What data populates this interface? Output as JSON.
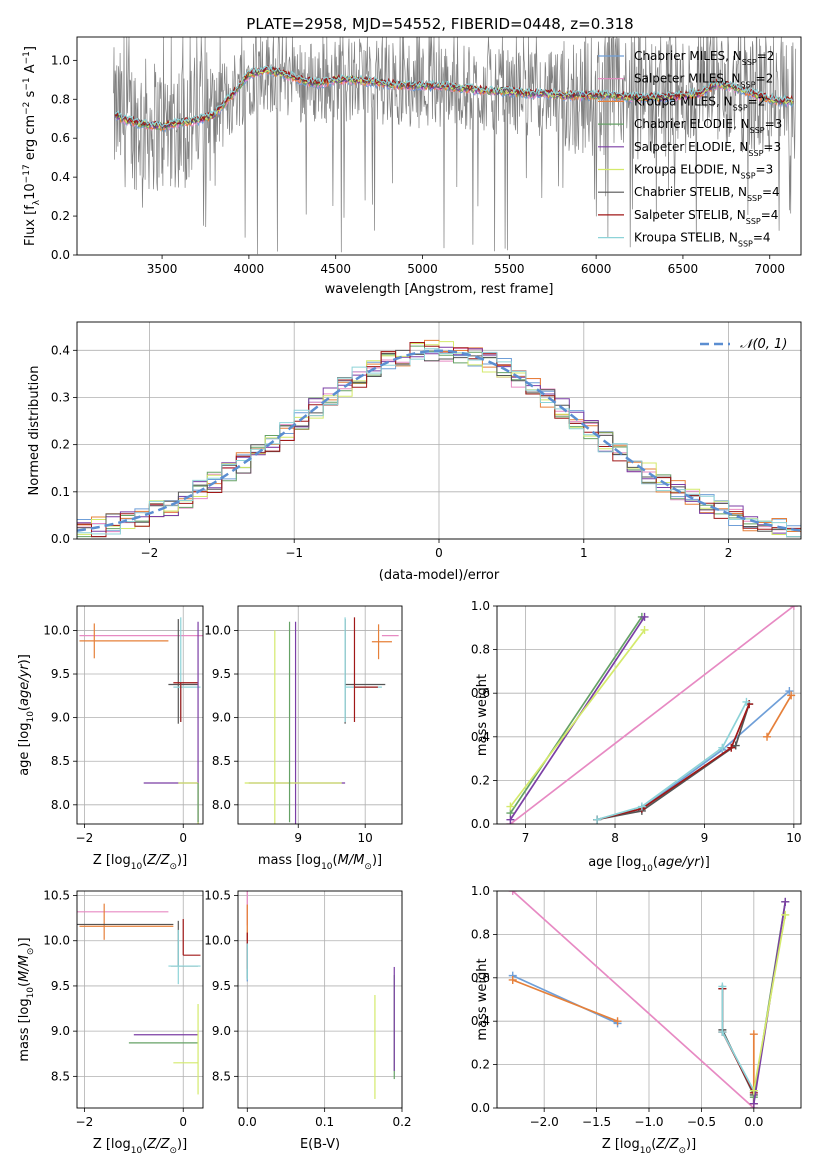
{
  "figure": {
    "title": "PLATE=2958, MJD=54552, FIBERID=0448, z=0.318"
  },
  "colors": {
    "Chabrier MILES": "#6f9fd8",
    "Salpeter MILES": "#e78ac3",
    "Kroupa MILES": "#e6803a",
    "Chabrier ELODIE": "#66a266",
    "Salpeter ELODIE": "#7b3fa5",
    "Kroupa ELODIE": "#d4ea6b",
    "Chabrier STELIB": "#555555",
    "Salpeter STELIB": "#a01818",
    "Kroupa STELIB": "#8dd3d8",
    "grid": "#b0b0b0",
    "data": "#808080"
  },
  "chart_data": [
    {
      "id": "spectrum",
      "type": "line",
      "xlabel": "wavelength [Angstrom, rest frame]",
      "ylabel": "Flux [f",
      "ylabel_parts": [
        "Flux [f",
        "λ",
        "10",
        "−17",
        " erg cm",
        "−2",
        " s",
        "−1",
        " A",
        "−1",
        "]"
      ],
      "xlim": [
        3010,
        7180
      ],
      "ylim": [
        0,
        1.12
      ],
      "xticks": [
        3500,
        4000,
        4500,
        5000,
        5500,
        6000,
        6500,
        7000
      ],
      "yticks": [
        0.0,
        0.2,
        0.4,
        0.6,
        0.8,
        1.0
      ],
      "grid": false,
      "legend_position": "upper right",
      "legend": [
        {
          "name": "Chabrier MILES",
          "n": "2"
        },
        {
          "name": "Salpeter MILES",
          "n": "2"
        },
        {
          "name": "Kroupa MILES",
          "n": "2"
        },
        {
          "name": "Chabrier ELODIE",
          "n": "3"
        },
        {
          "name": "Salpeter ELODIE",
          "n": "3"
        },
        {
          "name": "Kroupa ELODIE",
          "n": "3"
        },
        {
          "name": "Chabrier STELIB",
          "n": "4"
        },
        {
          "name": "Salpeter STELIB",
          "n": "4"
        },
        {
          "name": "Kroupa STELIB",
          "n": "4"
        }
      ],
      "model_x": [
        3200,
        3300,
        3400,
        3500,
        3600,
        3700,
        3800,
        3900,
        4000,
        4100,
        4200,
        4300,
        4400,
        4500,
        4600,
        4700,
        4800,
        4900,
        5000,
        5100,
        5200,
        5300,
        5400,
        5500,
        5600,
        5700,
        5800,
        5900,
        6000,
        6100,
        6200,
        6300,
        6400,
        6500,
        6600,
        6700,
        6800,
        6900,
        7000,
        7100
      ],
      "model_y": [
        0.73,
        0.69,
        0.67,
        0.66,
        0.68,
        0.69,
        0.72,
        0.82,
        0.93,
        0.95,
        0.93,
        0.9,
        0.88,
        0.9,
        0.9,
        0.89,
        0.88,
        0.87,
        0.87,
        0.87,
        0.86,
        0.85,
        0.84,
        0.84,
        0.83,
        0.83,
        0.82,
        0.82,
        0.82,
        0.82,
        0.81,
        0.81,
        0.81,
        0.82,
        0.83,
        0.88,
        0.86,
        0.83,
        0.8,
        0.79
      ]
    },
    {
      "id": "residuals",
      "type": "line",
      "xlabel": "(data-model)/error",
      "ylabel": "Normed distribution",
      "xlim": [
        -2.5,
        2.5
      ],
      "ylim": [
        0,
        0.46
      ],
      "xticks": [
        -2,
        -1,
        0,
        1,
        2
      ],
      "yticks": [
        0.0,
        0.1,
        0.2,
        0.3,
        0.4
      ],
      "grid": true,
      "legend": [
        {
          "name": "𝒩(0, 1)"
        }
      ],
      "legend_position": "upper right"
    },
    {
      "id": "age-vs-Z",
      "type": "scatter",
      "xlabel": "Z [log10(Z/Z⊙)]",
      "ylabel": "age  [log10(age/yr)]",
      "xlim": [
        -2.15,
        0.4
      ],
      "ylim": [
        7.78,
        10.28
      ],
      "xticks": [
        -2,
        0
      ],
      "yticks": [
        8.0,
        8.5,
        9.0,
        9.5,
        10.0
      ],
      "grid": true
    },
    {
      "id": "age-vs-mass",
      "type": "scatter",
      "xlabel": "mass [log10(M/M⊙)]",
      "xlim": [
        8.1,
        10.55
      ],
      "ylim": [
        7.78,
        10.28
      ],
      "xticks": [
        9,
        10
      ],
      "yticks": [
        8.0,
        8.5,
        9.0,
        9.5,
        10.0
      ],
      "grid": true
    },
    {
      "id": "weight-vs-age",
      "type": "line",
      "xlabel": "age  [log10(age/yr)]",
      "ylabel": "mass weight",
      "xlim": [
        6.68,
        10.08
      ],
      "ylim": [
        0,
        1
      ],
      "xticks": [
        7,
        8,
        9,
        10
      ],
      "yticks": [
        0.0,
        0.2,
        0.4,
        0.6,
        0.8,
        1.0
      ],
      "grid": true
    },
    {
      "id": "mass-vs-Z",
      "type": "scatter",
      "xlabel": "Z [log10(Z/Z⊙)]",
      "ylabel": "mass [log10(M/M⊙)]",
      "xlim": [
        -2.15,
        0.4
      ],
      "ylim": [
        8.15,
        10.55
      ],
      "xticks": [
        -2,
        0
      ],
      "yticks": [
        8.5,
        9.0,
        9.5,
        10.0,
        10.5
      ],
      "grid": true
    },
    {
      "id": "mass-vs-ebv",
      "type": "scatter",
      "xlabel": "E(B-V)",
      "xlim": [
        -0.012,
        0.2
      ],
      "ylim": [
        8.15,
        10.55
      ],
      "xticks": [
        0.0,
        0.1,
        0.2
      ],
      "yticks": [
        8.5,
        9.0,
        9.5,
        10.0,
        10.5
      ],
      "grid": true
    },
    {
      "id": "weight-vs-Z",
      "type": "line",
      "xlabel": "Z [log10(Z/Z⊙)]",
      "ylabel": "mass weight",
      "xlim": [
        -2.45,
        0.45
      ],
      "ylim": [
        0,
        1
      ],
      "xticks": [
        -2.0,
        -1.5,
        -1.0,
        -0.5,
        0.0
      ],
      "yticks": [
        0.0,
        0.2,
        0.4,
        0.6,
        0.8,
        1.0
      ],
      "grid": true
    }
  ],
  "models": [
    {
      "name": "Chabrier MILES",
      "age": [
        7.8,
        8.3,
        9.2,
        9.95
      ],
      "Z": [
        -1.3,
        -1.3,
        -0.3,
        0.0
      ],
      "w": [
        0.02,
        0.07,
        0.34,
        0.61
      ],
      "mass_total": 9.7,
      "ebv": 0.0
    },
    {
      "name": "Salpeter MILES",
      "age": [
        10.0
      ],
      "Z": [
        -2.3
      ],
      "w": [
        1.0
      ],
      "mass_total": 10.32,
      "ebv": 0.0
    },
    {
      "name": "Kroupa MILES",
      "age": [
        9.7,
        9.97
      ],
      "Z": [
        -1.3,
        -2.3
      ],
      "w": [
        0.4,
        0.59
      ],
      "mass_total": 10.15,
      "ebv": 0.0
    },
    {
      "name": "Chabrier ELODIE",
      "age": [
        6.83,
        8.3
      ],
      "Z": [
        0.0,
        0.3
      ],
      "w": [
        0.05,
        0.95
      ],
      "mass_total": 8.87,
      "ebv": 0.19
    },
    {
      "name": "Salpeter ELODIE",
      "age": [
        6.83,
        8.33
      ],
      "Z": [
        0.0,
        0.3
      ],
      "w": [
        0.02,
        0.95
      ],
      "mass_total": 8.96,
      "ebv": 0.19
    },
    {
      "name": "Kroupa ELODIE",
      "age": [
        6.83,
        8.33
      ],
      "Z": [
        0.0,
        0.3
      ],
      "w": [
        0.08,
        0.89
      ],
      "mass_total": 8.65,
      "ebv": 0.165
    },
    {
      "name": "Chabrier STELIB",
      "age": [
        7.8,
        8.3,
        9.35,
        9.5
      ],
      "Z": [
        0.0,
        0.0,
        -0.3,
        -0.3
      ],
      "w": [
        0.02,
        0.06,
        0.36,
        0.55
      ],
      "mass_total": 9.73,
      "ebv": 0.0
    },
    {
      "name": "Salpeter STELIB",
      "age": [
        7.8,
        8.3,
        9.3,
        9.5
      ],
      "Z": [
        0.0,
        0.0,
        -0.3,
        -0.3
      ],
      "w": [
        0.02,
        0.07,
        0.35,
        0.55
      ],
      "mass_total": 9.84,
      "ebv": 0.0
    },
    {
      "name": "Kroupa STELIB",
      "age": [
        7.8,
        8.3,
        9.2,
        9.47
      ],
      "Z": [
        0.0,
        0.0,
        -0.3,
        -0.3
      ],
      "w": [
        0.02,
        0.08,
        0.35,
        0.56
      ],
      "mass_total": 9.72,
      "ebv": 0.0
    }
  ]
}
